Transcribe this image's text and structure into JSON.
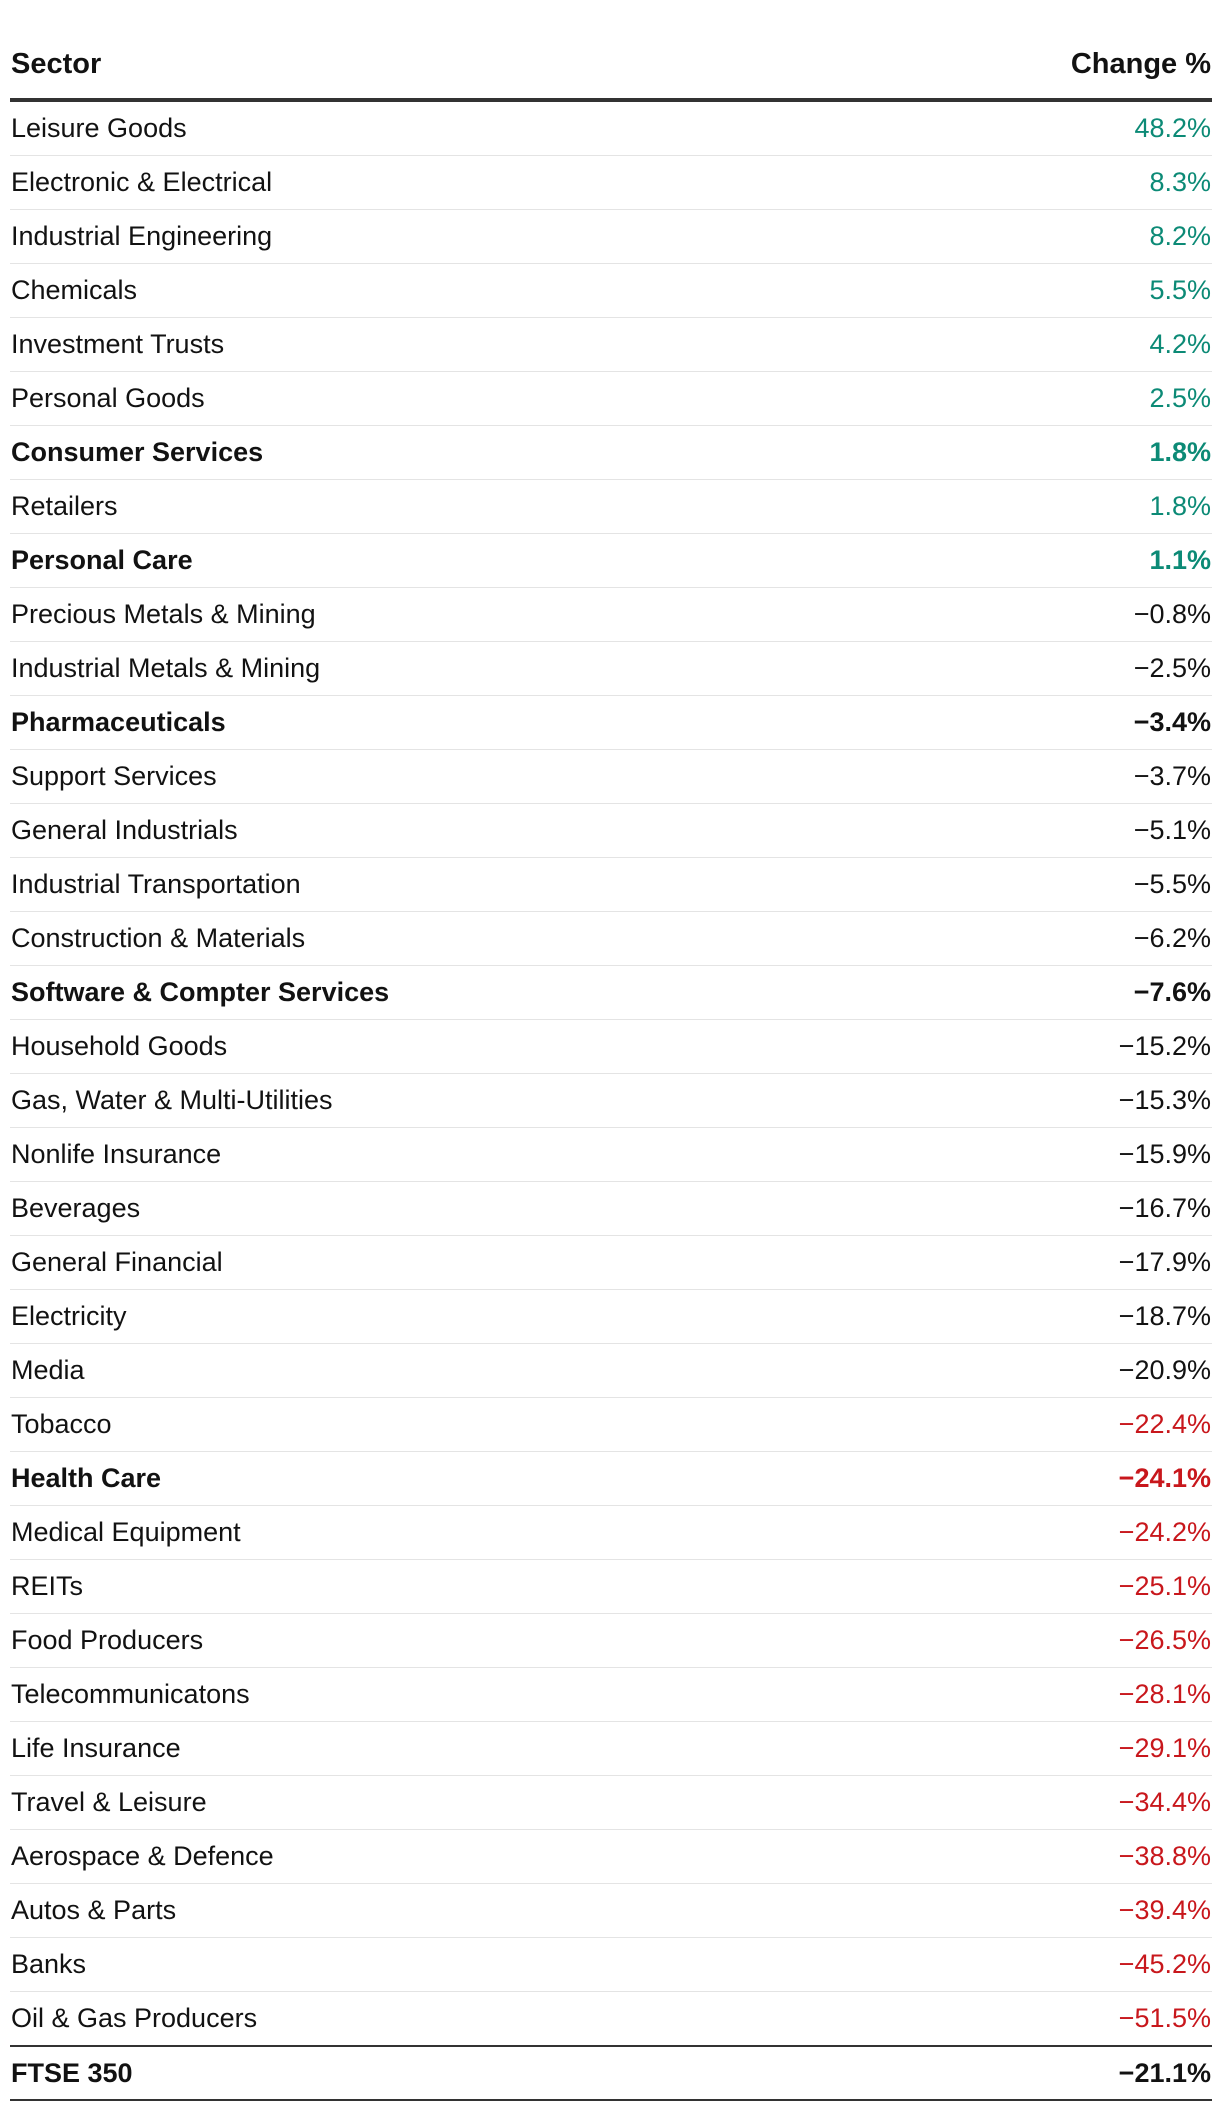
{
  "chart_data": {
    "type": "table",
    "columns": [
      "Sector",
      "Change %"
    ],
    "rows": [
      {
        "sector": "Leisure Goods",
        "change": "48.2%",
        "value": 48.2,
        "tone": "pos",
        "bold": false
      },
      {
        "sector": "Electronic & Electrical",
        "change": "8.3%",
        "value": 8.3,
        "tone": "pos",
        "bold": false
      },
      {
        "sector": "Industrial Engineering",
        "change": "8.2%",
        "value": 8.2,
        "tone": "pos",
        "bold": false
      },
      {
        "sector": "Chemicals",
        "change": "5.5%",
        "value": 5.5,
        "tone": "pos",
        "bold": false
      },
      {
        "sector": "Investment Trusts",
        "change": "4.2%",
        "value": 4.2,
        "tone": "pos",
        "bold": false
      },
      {
        "sector": "Personal Goods",
        "change": "2.5%",
        "value": 2.5,
        "tone": "pos",
        "bold": false
      },
      {
        "sector": "Consumer Services",
        "change": "1.8%",
        "value": 1.8,
        "tone": "pos",
        "bold": true
      },
      {
        "sector": "Retailers",
        "change": "1.8%",
        "value": 1.8,
        "tone": "pos",
        "bold": false
      },
      {
        "sector": "Personal Care",
        "change": "1.1%",
        "value": 1.1,
        "tone": "pos",
        "bold": true
      },
      {
        "sector": "Precious Metals & Mining",
        "change": "−0.8%",
        "value": -0.8,
        "tone": "neu",
        "bold": false
      },
      {
        "sector": "Industrial Metals & Mining",
        "change": "−2.5%",
        "value": -2.5,
        "tone": "neu",
        "bold": false
      },
      {
        "sector": "Pharmaceuticals",
        "change": "−3.4%",
        "value": -3.4,
        "tone": "neu",
        "bold": true
      },
      {
        "sector": "Support Services",
        "change": "−3.7%",
        "value": -3.7,
        "tone": "neu",
        "bold": false
      },
      {
        "sector": "General Industrials",
        "change": "−5.1%",
        "value": -5.1,
        "tone": "neu",
        "bold": false
      },
      {
        "sector": "Industrial Transportation",
        "change": "−5.5%",
        "value": -5.5,
        "tone": "neu",
        "bold": false
      },
      {
        "sector": "Construction & Materials",
        "change": "−6.2%",
        "value": -6.2,
        "tone": "neu",
        "bold": false
      },
      {
        "sector": "Software & Compter Services",
        "change": "−7.6%",
        "value": -7.6,
        "tone": "neu",
        "bold": true
      },
      {
        "sector": "Household Goods",
        "change": "−15.2%",
        "value": -15.2,
        "tone": "neu",
        "bold": false
      },
      {
        "sector": "Gas, Water & Multi-Utilities",
        "change": "−15.3%",
        "value": -15.3,
        "tone": "neu",
        "bold": false
      },
      {
        "sector": "Nonlife Insurance",
        "change": "−15.9%",
        "value": -15.9,
        "tone": "neu",
        "bold": false
      },
      {
        "sector": "Beverages",
        "change": "−16.7%",
        "value": -16.7,
        "tone": "neu",
        "bold": false
      },
      {
        "sector": "General Financial",
        "change": "−17.9%",
        "value": -17.9,
        "tone": "neu",
        "bold": false
      },
      {
        "sector": "Electricity",
        "change": "−18.7%",
        "value": -18.7,
        "tone": "neu",
        "bold": false
      },
      {
        "sector": "Media",
        "change": "−20.9%",
        "value": -20.9,
        "tone": "neu",
        "bold": false
      },
      {
        "sector": "Tobacco",
        "change": "−22.4%",
        "value": -22.4,
        "tone": "neg",
        "bold": false
      },
      {
        "sector": "Health Care",
        "change": "−24.1%",
        "value": -24.1,
        "tone": "neg",
        "bold": true
      },
      {
        "sector": "Medical Equipment",
        "change": "−24.2%",
        "value": -24.2,
        "tone": "neg",
        "bold": false
      },
      {
        "sector": "REITs",
        "change": "−25.1%",
        "value": -25.1,
        "tone": "neg",
        "bold": false
      },
      {
        "sector": "Food Producers",
        "change": "−26.5%",
        "value": -26.5,
        "tone": "neg",
        "bold": false
      },
      {
        "sector": "Telecommunicatons",
        "change": "−28.1%",
        "value": -28.1,
        "tone": "neg",
        "bold": false
      },
      {
        "sector": "Life Insurance",
        "change": "−29.1%",
        "value": -29.1,
        "tone": "neg",
        "bold": false
      },
      {
        "sector": "Travel & Leisure",
        "change": "−34.4%",
        "value": -34.4,
        "tone": "neg",
        "bold": false
      },
      {
        "sector": "Aerospace & Defence",
        "change": "−38.8%",
        "value": -38.8,
        "tone": "neg",
        "bold": false
      },
      {
        "sector": "Autos & Parts",
        "change": "−39.4%",
        "value": -39.4,
        "tone": "neg",
        "bold": false
      },
      {
        "sector": "Banks",
        "change": "−45.2%",
        "value": -45.2,
        "tone": "neg",
        "bold": false
      },
      {
        "sector": "Oil & Gas Producers",
        "change": "−51.5%",
        "value": -51.5,
        "tone": "neg",
        "bold": false
      }
    ],
    "total": {
      "sector": "FTSE 350",
      "change": "−21.1%",
      "value": -21.1,
      "tone": "neu",
      "bold": true
    }
  },
  "colors": {
    "positive": "#0c8a76",
    "neutral": "#121212",
    "negative": "#c8171c"
  }
}
